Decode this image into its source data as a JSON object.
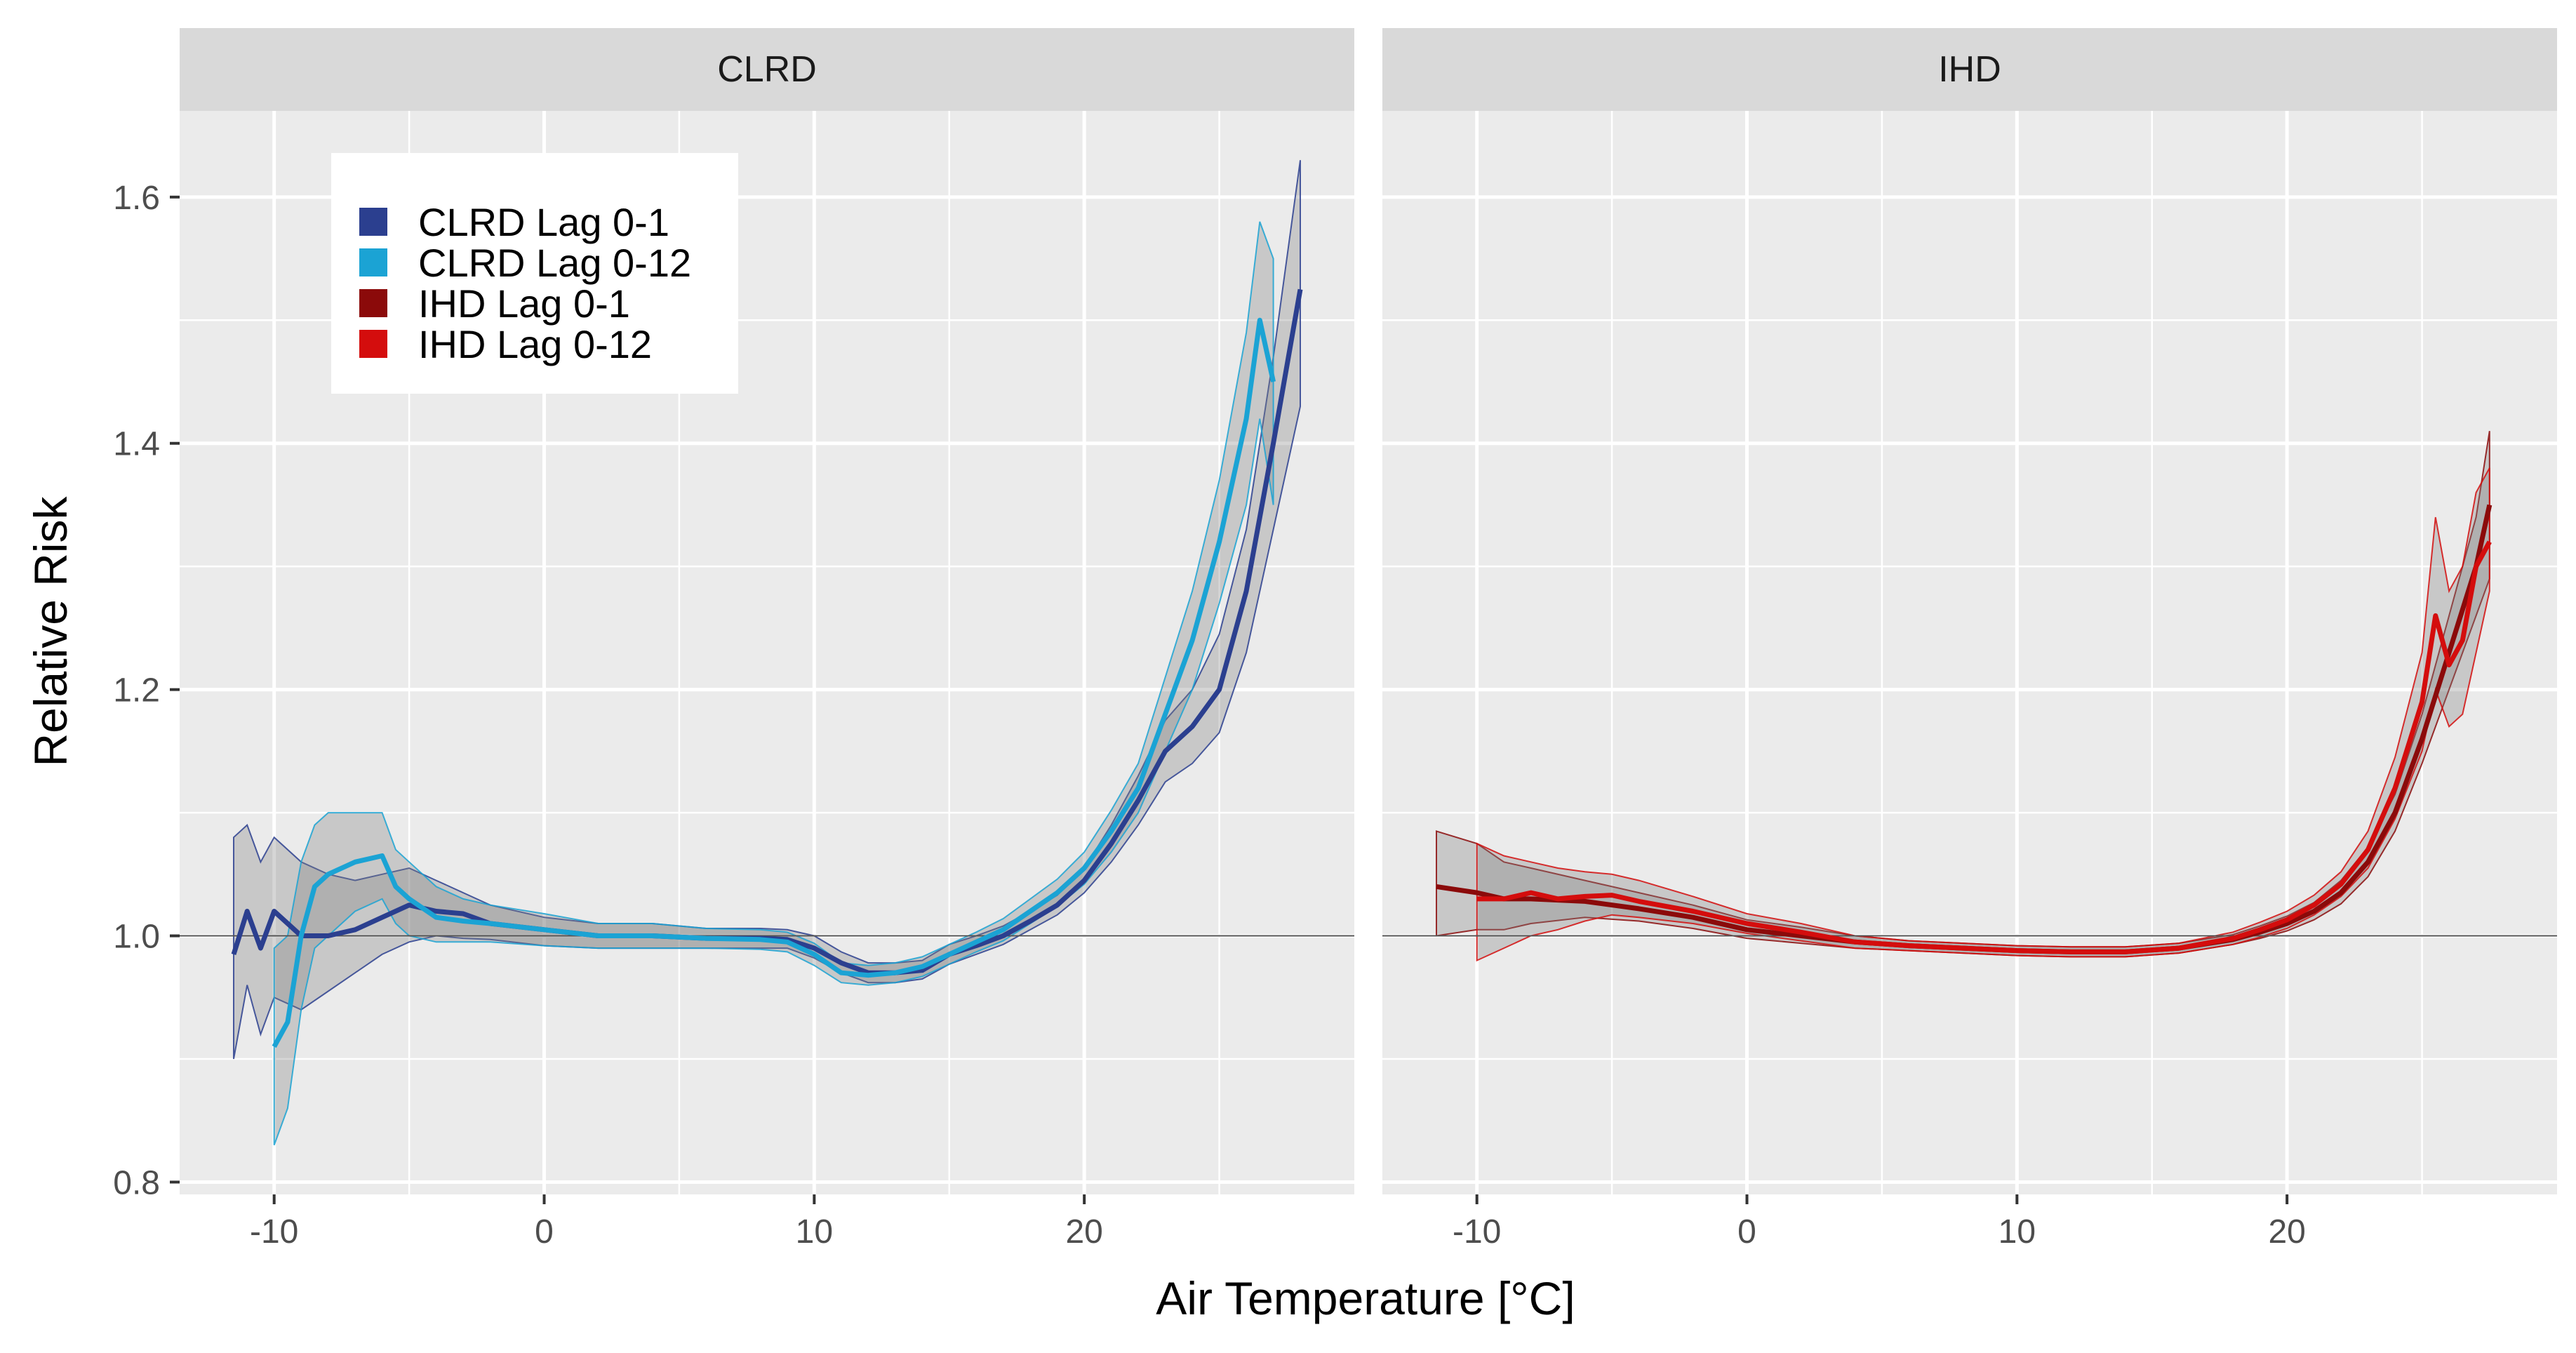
{
  "chart_data": {
    "type": "line",
    "xlabel": "Air Temperature [°C]",
    "ylabel": "Relative Risk",
    "xlim": [
      -13.5,
      30
    ],
    "ylim": [
      0.79,
      1.67
    ],
    "x_ticks": [
      -10,
      0,
      10,
      20
    ],
    "x_tick_labels": [
      "-10",
      "0",
      "10",
      "20"
    ],
    "x_minor": [
      -5,
      5,
      15,
      25
    ],
    "y_ticks": [
      0.8,
      1.0,
      1.2,
      1.4,
      1.6
    ],
    "y_tick_labels": [
      "0.8",
      "1.0",
      "1.2",
      "1.4",
      "1.6"
    ],
    "y_minor": [
      0.9,
      1.1,
      1.3,
      1.5
    ],
    "reference_line": 1.0,
    "grid": true,
    "legend_position": "top-left",
    "legend": [
      {
        "label": "CLRD Lag 0-1",
        "color": "#2b3f8f"
      },
      {
        "label": "CLRD Lag 0-12",
        "color": "#1ba3d4"
      },
      {
        "label": "IHD Lag 0-1",
        "color": "#8b0a0a"
      },
      {
        "label": "IHD Lag 0-12",
        "color": "#d40d0d"
      }
    ],
    "panels": [
      {
        "title": "CLRD",
        "series": [
          {
            "name": "CLRD Lag 0-1",
            "color": "#2b3f8f",
            "x": [
              -11.5,
              -11,
              -10.5,
              -10,
              -9,
              -8,
              -7,
              -6,
              -5,
              -4,
              -3,
              -2,
              0,
              2,
              4,
              6,
              8,
              9,
              10,
              11,
              12,
              13,
              14,
              15,
              16,
              17,
              18,
              19,
              20,
              21,
              22,
              23,
              24,
              25,
              26,
              27,
              28
            ],
            "y": [
              0.985,
              1.02,
              0.99,
              1.02,
              1.0,
              1.0,
              1.005,
              1.015,
              1.025,
              1.02,
              1.018,
              1.01,
              1.005,
              1.0,
              1.0,
              0.998,
              0.998,
              0.997,
              0.99,
              0.978,
              0.97,
              0.97,
              0.972,
              0.985,
              0.992,
              1.0,
              1.012,
              1.025,
              1.045,
              1.075,
              1.11,
              1.15,
              1.17,
              1.2,
              1.28,
              1.4,
              1.525
            ],
            "lower": [
              0.9,
              0.96,
              0.92,
              0.95,
              0.94,
              0.955,
              0.97,
              0.985,
              0.995,
              1.0,
              0.998,
              0.997,
              0.992,
              0.99,
              0.99,
              0.99,
              0.99,
              0.99,
              0.982,
              0.97,
              0.962,
              0.962,
              0.965,
              0.977,
              0.985,
              0.993,
              1.005,
              1.017,
              1.035,
              1.06,
              1.09,
              1.125,
              1.14,
              1.165,
              1.23,
              1.33,
              1.43
            ],
            "upper": [
              1.08,
              1.09,
              1.06,
              1.08,
              1.06,
              1.05,
              1.045,
              1.05,
              1.055,
              1.045,
              1.035,
              1.025,
              1.015,
              1.01,
              1.01,
              1.006,
              1.006,
              1.005,
              1.0,
              0.987,
              0.978,
              0.978,
              0.98,
              0.993,
              1.0,
              1.008,
              1.02,
              1.033,
              1.055,
              1.09,
              1.13,
              1.175,
              1.2,
              1.245,
              1.33,
              1.47,
              1.63
            ]
          },
          {
            "name": "CLRD Lag 0-12",
            "color": "#1ba3d4",
            "x": [
              -10,
              -9.5,
              -9,
              -8.5,
              -8,
              -7,
              -6,
              -5.5,
              -5,
              -4,
              -3,
              -2,
              0,
              2,
              4,
              6,
              8,
              9,
              10,
              11,
              12,
              13,
              14,
              15,
              16,
              17,
              18,
              19,
              20,
              21,
              22,
              23,
              24,
              25,
              26,
              26.5,
              27
            ],
            "y": [
              0.91,
              0.93,
              1.0,
              1.04,
              1.05,
              1.06,
              1.065,
              1.04,
              1.03,
              1.015,
              1.012,
              1.01,
              1.005,
              1.0,
              1.0,
              0.998,
              0.997,
              0.995,
              0.985,
              0.97,
              0.968,
              0.97,
              0.975,
              0.985,
              0.995,
              1.005,
              1.02,
              1.035,
              1.055,
              1.085,
              1.12,
              1.18,
              1.24,
              1.32,
              1.42,
              1.5,
              1.45
            ],
            "lower": [
              0.83,
              0.86,
              0.94,
              0.99,
              1.0,
              1.02,
              1.03,
              1.01,
              1.0,
              0.995,
              0.995,
              0.995,
              0.992,
              0.99,
              0.99,
              0.99,
              0.989,
              0.987,
              0.976,
              0.962,
              0.96,
              0.962,
              0.967,
              0.977,
              0.987,
              0.996,
              1.01,
              1.024,
              1.042,
              1.068,
              1.1,
              1.15,
              1.2,
              1.27,
              1.35,
              1.42,
              1.35
            ],
            "upper": [
              0.99,
              1.0,
              1.06,
              1.09,
              1.1,
              1.1,
              1.1,
              1.07,
              1.06,
              1.04,
              1.03,
              1.025,
              1.018,
              1.01,
              1.01,
              1.006,
              1.005,
              1.003,
              0.994,
              0.978,
              0.976,
              0.978,
              0.983,
              0.993,
              1.003,
              1.014,
              1.03,
              1.046,
              1.068,
              1.102,
              1.14,
              1.21,
              1.28,
              1.37,
              1.49,
              1.58,
              1.55
            ]
          }
        ]
      },
      {
        "title": "IHD",
        "series": [
          {
            "name": "IHD Lag 0-1",
            "color": "#8b0a0a",
            "x": [
              -11.5,
              -10,
              -9,
              -8,
              -6,
              -4,
              -2,
              0,
              2,
              4,
              6,
              8,
              10,
              12,
              14,
              16,
              18,
              19,
              20,
              21,
              22,
              23,
              24,
              25,
              26,
              27,
              27.5
            ],
            "y": [
              1.04,
              1.035,
              1.03,
              1.03,
              1.028,
              1.022,
              1.015,
              1.005,
              1.0,
              0.995,
              0.992,
              0.99,
              0.988,
              0.987,
              0.987,
              0.99,
              0.997,
              1.003,
              1.01,
              1.02,
              1.035,
              1.06,
              1.1,
              1.16,
              1.23,
              1.3,
              1.35
            ],
            "lower": [
              1.0,
              1.005,
              1.005,
              1.01,
              1.015,
              1.012,
              1.006,
              0.998,
              0.994,
              0.99,
              0.988,
              0.986,
              0.984,
              0.983,
              0.983,
              0.986,
              0.993,
              0.998,
              1.004,
              1.013,
              1.026,
              1.048,
              1.085,
              1.14,
              1.2,
              1.26,
              1.29
            ],
            "upper": [
              1.085,
              1.075,
              1.06,
              1.055,
              1.045,
              1.035,
              1.025,
              1.013,
              1.007,
              1.0,
              0.996,
              0.994,
              0.992,
              0.991,
              0.991,
              0.994,
              1.001,
              1.008,
              1.016,
              1.027,
              1.045,
              1.072,
              1.115,
              1.18,
              1.26,
              1.34,
              1.41
            ]
          },
          {
            "name": "IHD Lag 0-12",
            "color": "#d40d0d",
            "x": [
              -10,
              -9,
              -8,
              -7,
              -6,
              -5,
              -4,
              -2,
              0,
              2,
              4,
              6,
              8,
              10,
              12,
              14,
              16,
              18,
              19,
              20,
              21,
              22,
              23,
              24,
              25,
              25.5,
              26,
              26.5,
              27,
              27.5
            ],
            "y": [
              1.03,
              1.03,
              1.035,
              1.03,
              1.032,
              1.033,
              1.028,
              1.02,
              1.01,
              1.003,
              0.995,
              0.992,
              0.99,
              0.988,
              0.987,
              0.987,
              0.99,
              0.998,
              1.005,
              1.013,
              1.025,
              1.042,
              1.07,
              1.12,
              1.19,
              1.26,
              1.22,
              1.24,
              1.3,
              1.32
            ],
            "lower": [
              0.98,
              0.99,
              1.0,
              1.005,
              1.012,
              1.017,
              1.015,
              1.01,
              1.002,
              0.996,
              0.99,
              0.988,
              0.986,
              0.984,
              0.983,
              0.983,
              0.986,
              0.993,
              0.999,
              1.006,
              1.017,
              1.032,
              1.055,
              1.095,
              1.15,
              1.2,
              1.17,
              1.18,
              1.23,
              1.28
            ],
            "upper": [
              1.075,
              1.065,
              1.06,
              1.055,
              1.052,
              1.05,
              1.045,
              1.032,
              1.018,
              1.01,
              1.0,
              0.996,
              0.994,
              0.992,
              0.991,
              0.991,
              0.994,
              1.003,
              1.011,
              1.02,
              1.033,
              1.052,
              1.085,
              1.145,
              1.23,
              1.34,
              1.28,
              1.3,
              1.36,
              1.38
            ]
          }
        ]
      }
    ]
  }
}
